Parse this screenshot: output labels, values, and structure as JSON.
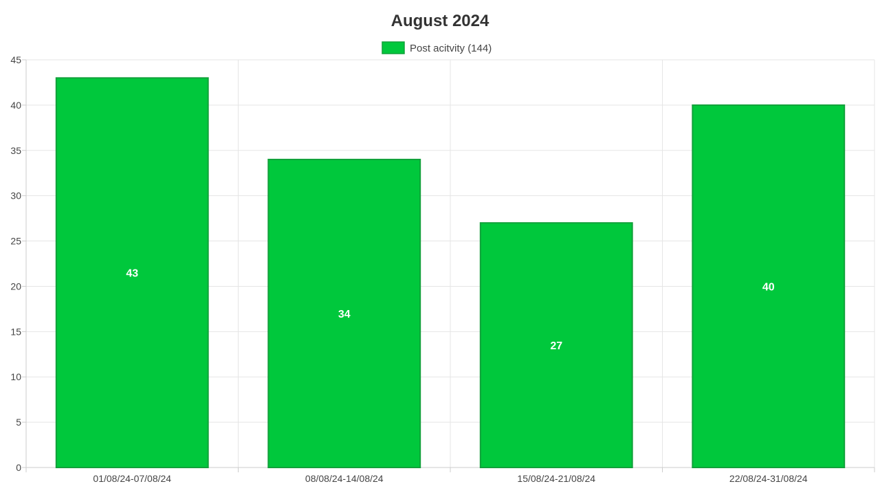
{
  "chart_data": {
    "type": "bar",
    "title": "August 2024",
    "categories": [
      "01/08/24-07/08/24",
      "08/08/24-14/08/24",
      "15/08/24-21/08/24",
      "22/08/24-31/08/24"
    ],
    "series": [
      {
        "name": "Post acitvity (144)",
        "values": [
          43,
          34,
          27,
          40
        ],
        "color": "#00c83c",
        "border_color": "#11a13a"
      }
    ],
    "xlabel": "",
    "ylabel": "",
    "ylim": [
      0,
      45
    ],
    "y_ticks": [
      0,
      5,
      10,
      15,
      20,
      25,
      30,
      35,
      40,
      45
    ],
    "grid": true,
    "legend_position": "top-center",
    "data_labels": true
  }
}
